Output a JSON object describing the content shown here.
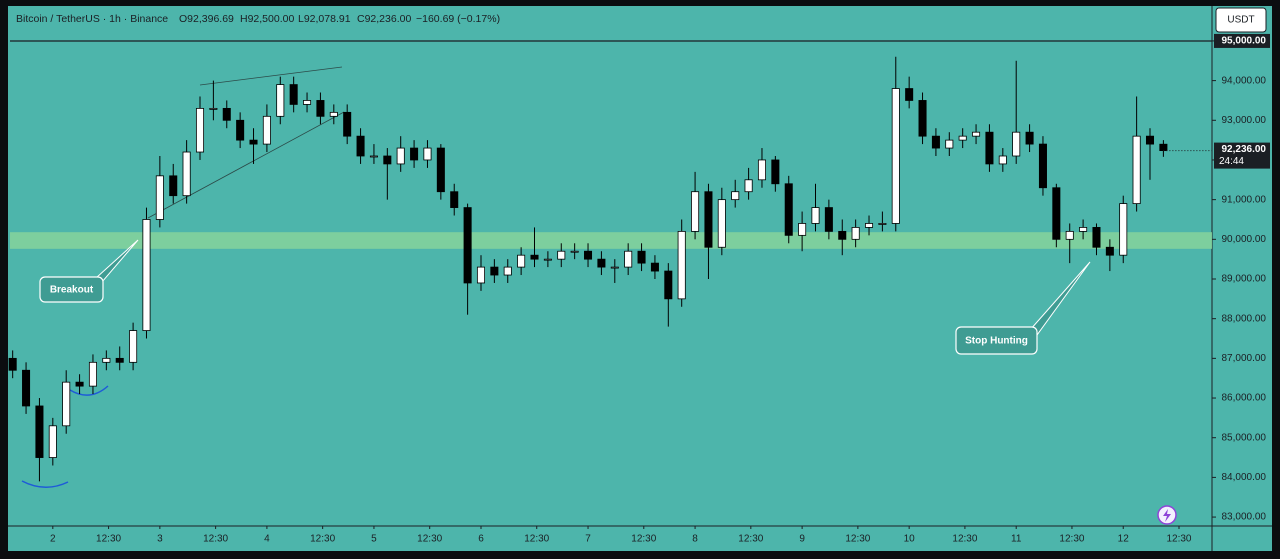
{
  "chart_data": {
    "type": "candlestick",
    "title": "Bitcoin / TetherUS · 1h · Binance",
    "ohlc_text": [
      "O92,396.69",
      "H92,500.00",
      "L92,078.91",
      "C92,236.00",
      "−160.69 (−0.17%)"
    ],
    "currency": "USDT",
    "annotations": [
      "Breakout",
      "Stop Hunting"
    ],
    "last_price": {
      "value": 92236,
      "label": "92,236.00"
    },
    "countdown": "24:44",
    "zone": [
      89760,
      90180
    ],
    "up_color": "#ffffff",
    "down_color": "#000000",
    "zone_color": "#86d39b",
    "x": [
      -9,
      -6,
      -3,
      0,
      3,
      6,
      9,
      12,
      15,
      18,
      21,
      24,
      27,
      30,
      33,
      36,
      39,
      42,
      45,
      48,
      51,
      54,
      57,
      60,
      63,
      66,
      69,
      72,
      75,
      78,
      81,
      84,
      87,
      90,
      93,
      96,
      99,
      102,
      105,
      108,
      111,
      114,
      117,
      120,
      123,
      126,
      129,
      132,
      135,
      138,
      141,
      144,
      147,
      150,
      153,
      156,
      159,
      162,
      165,
      168,
      171,
      174,
      177,
      180,
      183,
      186,
      189,
      192,
      195,
      198,
      201,
      204,
      207,
      210,
      213,
      216,
      219,
      222,
      225,
      228,
      231,
      234,
      237,
      240,
      243,
      246,
      249
    ],
    "open": [
      87000,
      86700,
      85800,
      84500,
      85300,
      86400,
      86300,
      86900,
      87000,
      86900,
      87700,
      90500,
      91600,
      91100,
      92200,
      93300,
      93300,
      93000,
      92500,
      92400,
      93100,
      93900,
      93400,
      93500,
      93100,
      93200,
      92600,
      92100,
      92100,
      91900,
      92300,
      92000,
      92300,
      91200,
      90800,
      88900,
      89300,
      89100,
      89300,
      89600,
      89500,
      89500,
      89700,
      89700,
      89500,
      89300,
      89300,
      89700,
      89400,
      89200,
      88500,
      90200,
      91200,
      89800,
      91000,
      91200,
      91500,
      92000,
      91400,
      90100,
      90400,
      90800,
      90200,
      90000,
      90300,
      90400,
      90400,
      93800,
      93500,
      92600,
      92300,
      92500,
      92600,
      92700,
      91900,
      92100,
      92700,
      92400,
      91300,
      90000,
      90200,
      90300,
      89800,
      89600,
      90900,
      92600,
      92396.69
    ],
    "high": [
      87200,
      86900,
      86000,
      85500,
      86700,
      86600,
      87100,
      87200,
      87300,
      87900,
      90800,
      92100,
      91900,
      92500,
      93600,
      94000,
      93500,
      93200,
      92800,
      93400,
      94100,
      94100,
      93700,
      93700,
      93400,
      93400,
      92800,
      92400,
      92300,
      92600,
      92500,
      92500,
      92400,
      91400,
      90900,
      89600,
      89500,
      89500,
      89800,
      90300,
      89700,
      89900,
      89900,
      89900,
      89700,
      89500,
      89900,
      89900,
      89600,
      89400,
      90500,
      91700,
      91400,
      91300,
      91500,
      91800,
      92300,
      92100,
      91600,
      90700,
      91400,
      91000,
      90500,
      90500,
      90600,
      90700,
      94600,
      94100,
      93700,
      92800,
      92700,
      92800,
      92900,
      92900,
      92300,
      94500,
      92900,
      92600,
      91400,
      90400,
      90500,
      90400,
      90000,
      91100,
      93600,
      92800,
      92500
    ],
    "low": [
      86500,
      85600,
      83900,
      84300,
      85100,
      86100,
      86100,
      86700,
      86700,
      86700,
      87500,
      90300,
      90900,
      90900,
      92000,
      93000,
      92800,
      92300,
      91900,
      92200,
      92900,
      93200,
      93200,
      92900,
      92900,
      92400,
      91900,
      91900,
      91000,
      91700,
      91800,
      91800,
      91000,
      90600,
      88100,
      88700,
      88900,
      88900,
      89100,
      89300,
      89300,
      89300,
      89500,
      89300,
      89100,
      88900,
      89100,
      89200,
      89000,
      87800,
      88300,
      90000,
      89000,
      89600,
      90800,
      91000,
      91300,
      91200,
      89900,
      89700,
      90200,
      90000,
      89600,
      89800,
      90100,
      90200,
      90200,
      93300,
      92400,
      92100,
      92100,
      92300,
      92400,
      91700,
      91700,
      91900,
      92200,
      91100,
      89800,
      89400,
      90000,
      89600,
      89200,
      89400,
      90700,
      91500,
      92078.91
    ],
    "close": [
      86700,
      85800,
      84500,
      85300,
      86400,
      86300,
      86900,
      87000,
      86900,
      87700,
      90500,
      91600,
      91100,
      92200,
      93300,
      93300,
      93000,
      92500,
      92400,
      93100,
      93900,
      93400,
      93500,
      93100,
      93200,
      92600,
      92100,
      92100,
      91900,
      92300,
      92000,
      92300,
      91200,
      90800,
      88900,
      89300,
      89100,
      89300,
      89600,
      89500,
      89500,
      89700,
      89700,
      89500,
      89300,
      89300,
      89700,
      89400,
      89200,
      88500,
      90200,
      91200,
      89800,
      91000,
      91200,
      91500,
      92000,
      91400,
      90100,
      90400,
      90800,
      90200,
      90000,
      90300,
      90400,
      90400,
      93800,
      93500,
      92600,
      92300,
      92500,
      92600,
      92700,
      91900,
      92100,
      92700,
      92400,
      91300,
      90000,
      90200,
      90300,
      89800,
      89600,
      90900,
      92600,
      92400,
      92236
    ],
    "xlim": [
      -9.6,
      259.9
    ],
    "ylim": [
      82800,
      95830
    ],
    "xticks": [
      {
        "value": 0,
        "label": "2"
      },
      {
        "value": 12.5,
        "label": "12:30"
      },
      {
        "value": 24,
        "label": "3"
      },
      {
        "value": 36.5,
        "label": "12:30"
      },
      {
        "value": 48,
        "label": "4"
      },
      {
        "value": 60.5,
        "label": "12:30"
      },
      {
        "value": 72,
        "label": "5"
      },
      {
        "value": 84.5,
        "label": "12:30"
      },
      {
        "value": 96,
        "label": "6"
      },
      {
        "value": 108.5,
        "label": "12:30"
      },
      {
        "value": 120,
        "label": "7"
      },
      {
        "value": 132.5,
        "label": "12:30"
      },
      {
        "value": 144,
        "label": "8"
      },
      {
        "value": 156.5,
        "label": "12:30"
      },
      {
        "value": 168,
        "label": "9"
      },
      {
        "value": 180.5,
        "label": "12:30"
      },
      {
        "value": 192,
        "label": "10"
      },
      {
        "value": 204.5,
        "label": "12:30"
      },
      {
        "value": 216,
        "label": "11"
      },
      {
        "value": 228.5,
        "label": "12:30"
      },
      {
        "value": 240,
        "label": "12"
      },
      {
        "value": 252.5,
        "label": "12:30"
      }
    ],
    "yticks": [
      {
        "value": 83000,
        "label": "83,000.00"
      },
      {
        "value": 84000,
        "label": "84,000.00"
      },
      {
        "value": 85000,
        "label": "85,000.00"
      },
      {
        "value": 86000,
        "label": "86,000.00"
      },
      {
        "value": 87000,
        "label": "87,000.00"
      },
      {
        "value": 88000,
        "label": "88,000.00"
      },
      {
        "value": 89000,
        "label": "89,000.00"
      },
      {
        "value": 90000,
        "label": "90,000.00"
      },
      {
        "value": 91000,
        "label": "91,000.00"
      },
      {
        "value": 92000,
        "label": "92,000.00"
      },
      {
        "value": 93000,
        "label": "93,000.00"
      },
      {
        "value": 94000,
        "label": "94,000.00"
      },
      {
        "value": 95000,
        "label": "95,000.00"
      }
    ]
  }
}
